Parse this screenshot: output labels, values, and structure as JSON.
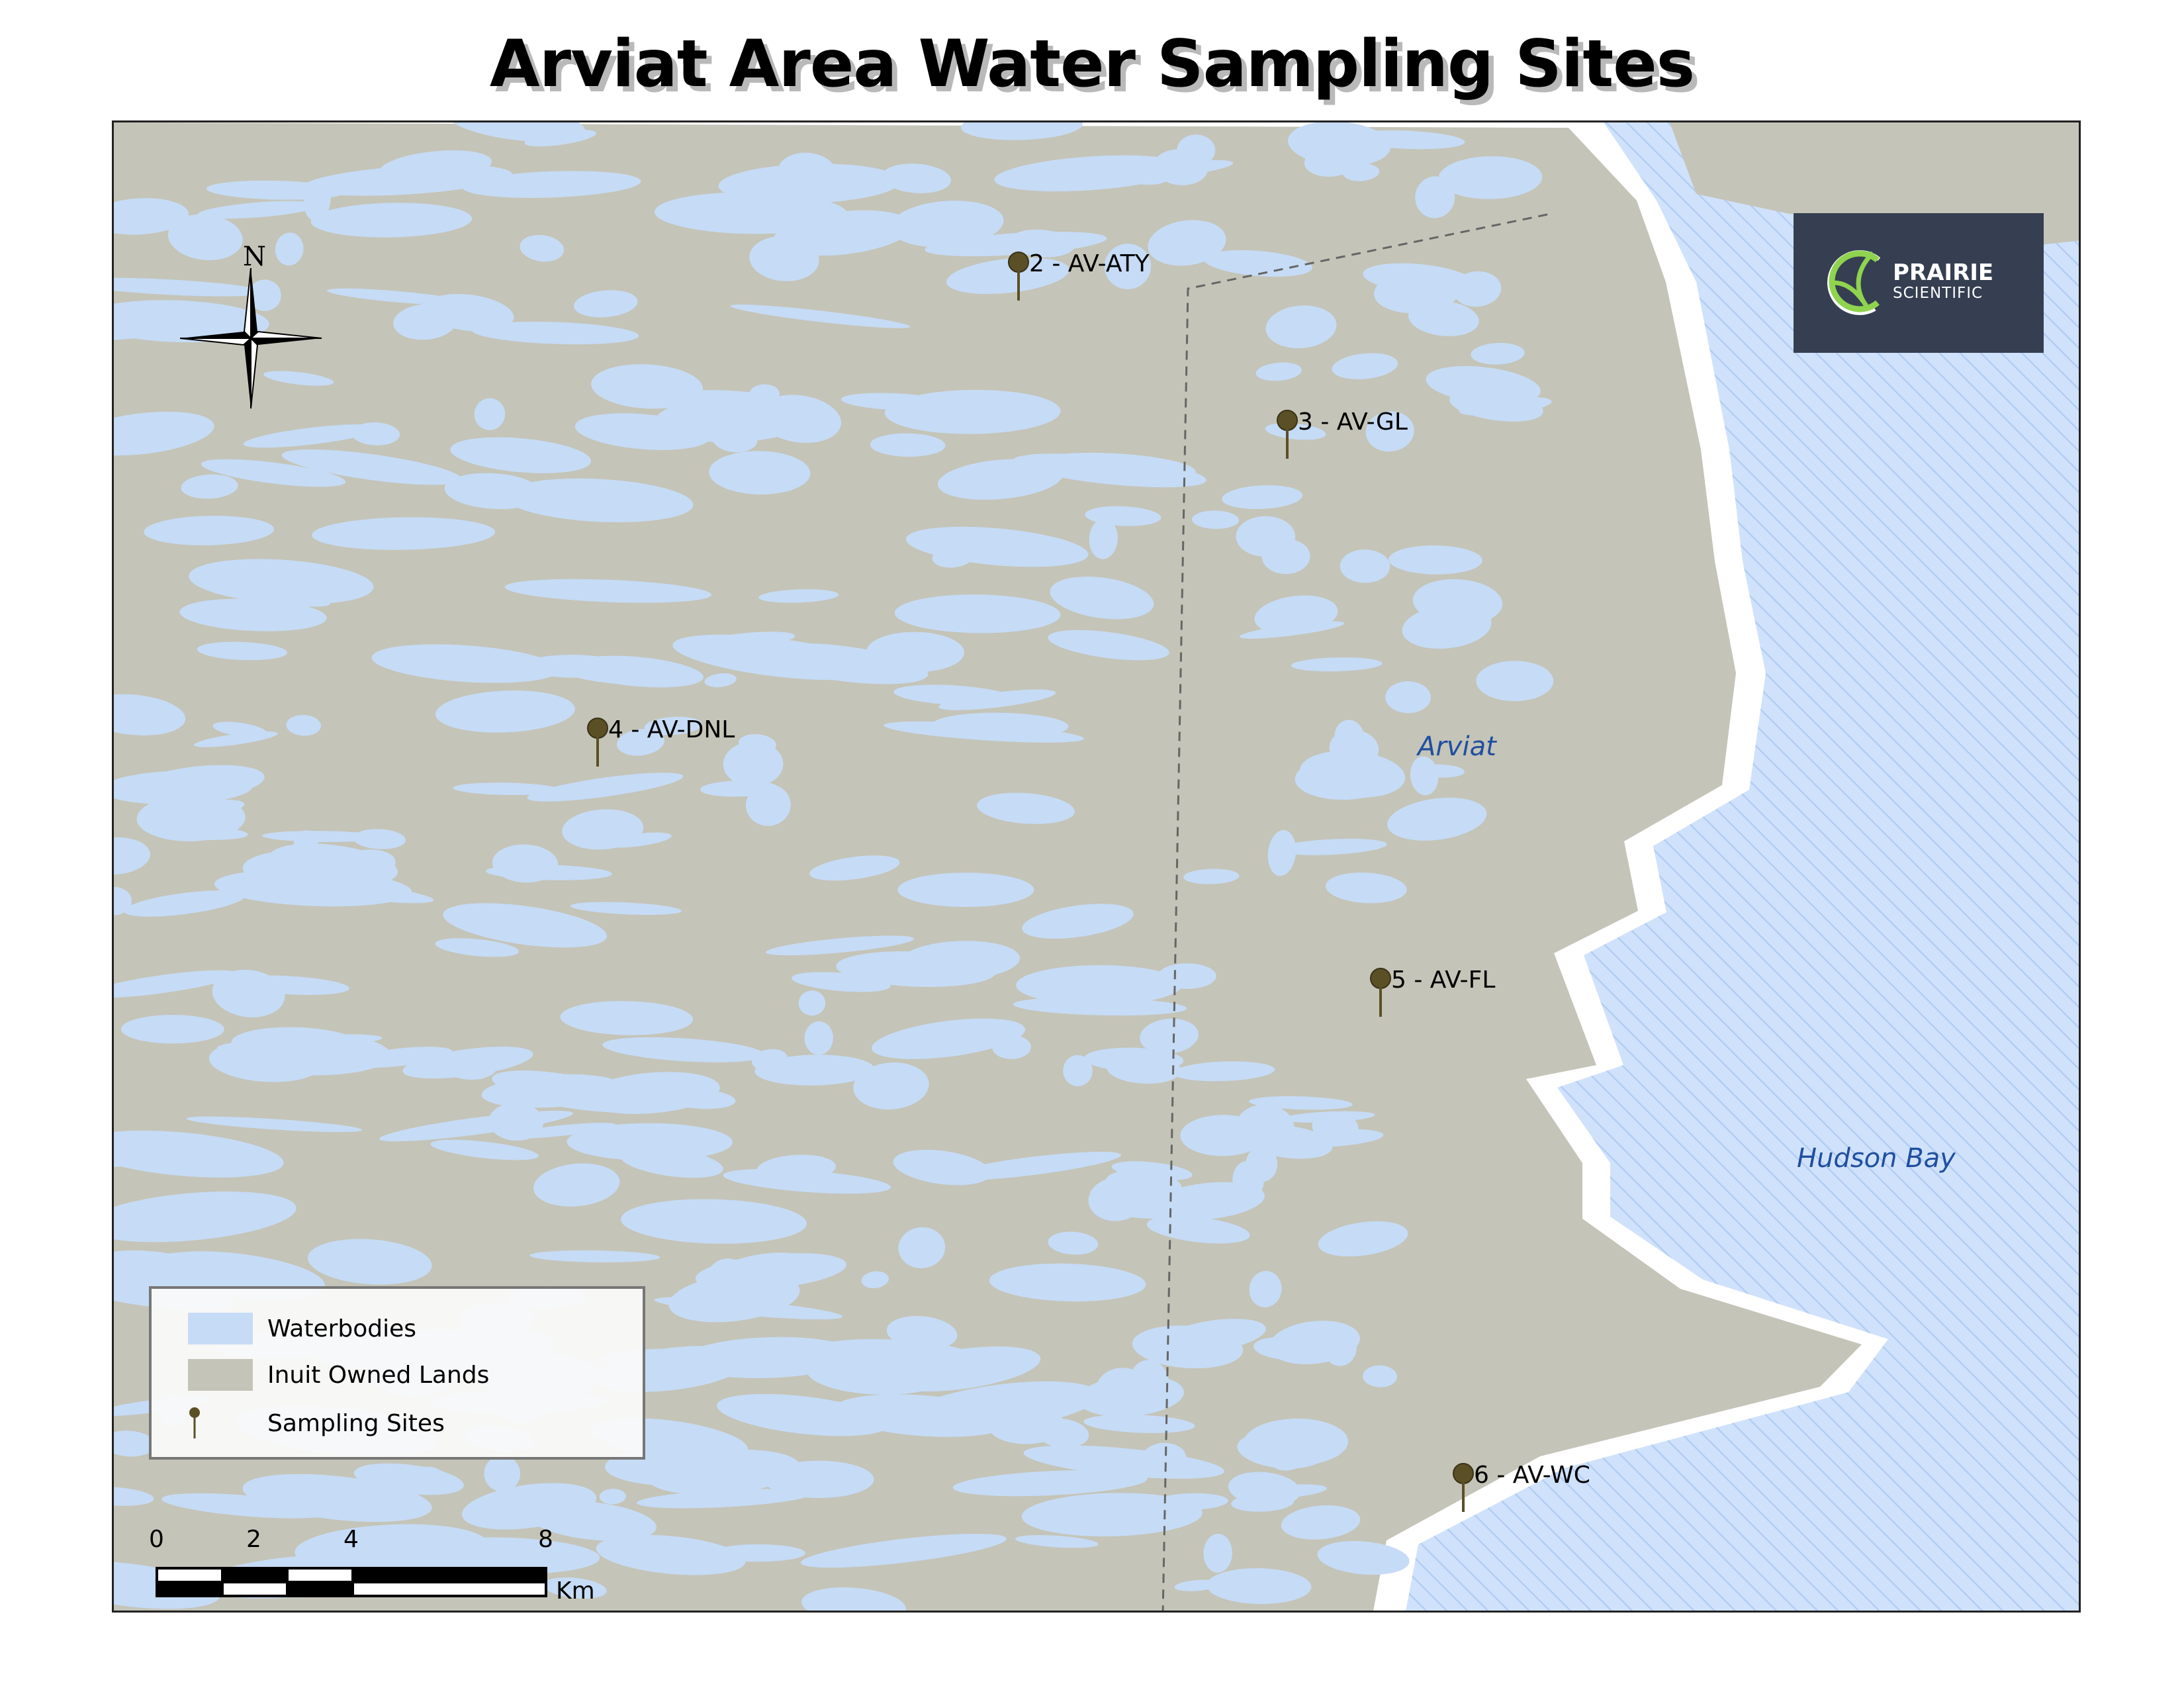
{
  "title": "Arviat Area Water Sampling Sites",
  "colors": {
    "water": "#c6dbf5",
    "land": "#c4c4b8",
    "coast": "#ffffff",
    "pin": "#5b4f26",
    "logo_bg": "#353f51",
    "logo_accent": "#8fd34f",
    "place_label": "#1f4fa0"
  },
  "compass": {
    "north_label": "N"
  },
  "logo": {
    "line1": "PRAIRIE",
    "line2": "SCIENTIFIC"
  },
  "places": {
    "town": "Arviat",
    "sea": "Hudson Bay"
  },
  "sites": [
    {
      "label": "2 - AV-ATY"
    },
    {
      "label": "3 - AV-GL"
    },
    {
      "label": "4 - AV-DNL"
    },
    {
      "label": "5 - AV-FL"
    },
    {
      "label": "6 - AV-WC"
    }
  ],
  "legend": {
    "items": [
      {
        "label": "Waterbodies",
        "symbol": "water-swatch"
      },
      {
        "label": "Inuit Owned Lands",
        "symbol": "land-swatch"
      },
      {
        "label": "Sampling Sites",
        "symbol": "pin-icon"
      }
    ]
  },
  "scalebar": {
    "ticks": [
      "0",
      "2",
      "4",
      "8"
    ],
    "unit": "Km"
  }
}
